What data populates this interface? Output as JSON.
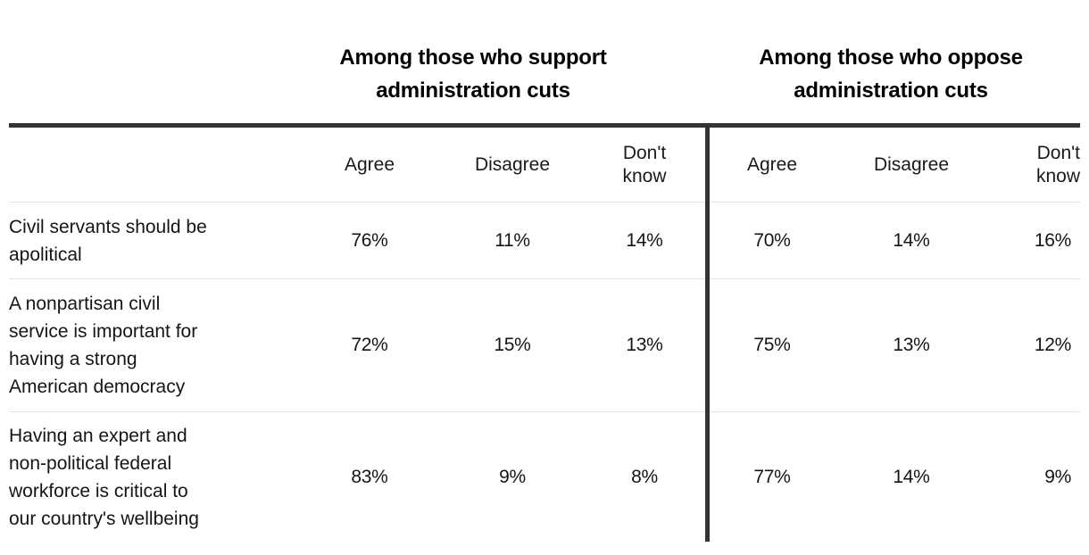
{
  "colors": {
    "rule_dark": "#333333",
    "rule_light": "#e4e4e4",
    "text": "#151515",
    "header_text": "#000000",
    "background": "#ffffff"
  },
  "table": {
    "group_headers": [
      "Among those who support\nadministration cuts",
      "Among those who oppose\nadministration cuts"
    ],
    "columns": [
      "Agree",
      "Disagree",
      "Don't know"
    ],
    "rows": [
      {
        "label": "Civil servants should be\napolitical",
        "support": [
          "76%",
          "11%",
          "14%"
        ],
        "oppose": [
          "70%",
          "14%",
          "16%"
        ]
      },
      {
        "label": "A nonpartisan civil\nservice is important for\nhaving a strong\nAmerican democracy",
        "support": [
          "72%",
          "15%",
          "13%"
        ],
        "oppose": [
          "75%",
          "13%",
          "12%"
        ]
      },
      {
        "label": "Having an expert and\nnon-political federal\nworkforce is critical to\nour country's wellbeing",
        "support": [
          "83%",
          "9%",
          "8%"
        ],
        "oppose": [
          "77%",
          "14%",
          "9%"
        ]
      }
    ]
  },
  "chart_data": {
    "type": "table",
    "title": "",
    "column_groups": [
      "Among those who support administration cuts",
      "Among those who oppose administration cuts"
    ],
    "columns": [
      "Agree",
      "Disagree",
      "Don't know"
    ],
    "rows": [
      {
        "label": "Civil servants should be apolitical",
        "support_administration_cuts": {
          "agree": 76,
          "disagree": 11,
          "dont_know": 14
        },
        "oppose_administration_cuts": {
          "agree": 70,
          "disagree": 14,
          "dont_know": 16
        }
      },
      {
        "label": "A nonpartisan civil service is important for having a strong American democracy",
        "support_administration_cuts": {
          "agree": 72,
          "disagree": 15,
          "dont_know": 13
        },
        "oppose_administration_cuts": {
          "agree": 75,
          "disagree": 13,
          "dont_know": 12
        }
      },
      {
        "label": "Having an expert and non-political federal workforce is critical to our country's wellbeing",
        "support_administration_cuts": {
          "agree": 83,
          "disagree": 9,
          "dont_know": 8
        },
        "oppose_administration_cuts": {
          "agree": 77,
          "disagree": 14,
          "dont_know": 9
        }
      }
    ],
    "units": "percent",
    "layout": {
      "two_column_groups": true,
      "grid": "light horizontal rules, heavy top rule and center vertical divider"
    }
  }
}
